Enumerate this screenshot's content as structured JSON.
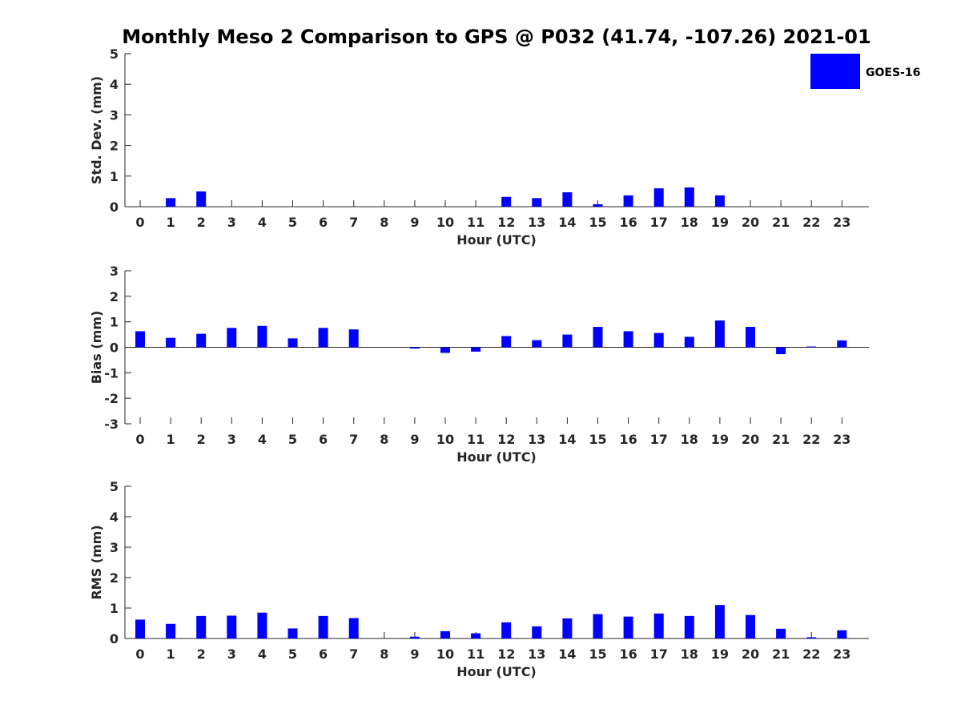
{
  "chart_data": {
    "type": "bar",
    "title": "Monthly Meso 2 Comparison to GPS @ P032 (41.74, -107.26) 2021-01",
    "legend": {
      "label": "GOES-16",
      "color": "#0000ff",
      "position": "top-right"
    },
    "bar_color": "#0000ff",
    "panels": [
      {
        "ylabel": "Std. Dev. (mm)",
        "xlabel": "Hour (UTC)",
        "ylim": [
          0,
          5
        ],
        "yticks": [
          0,
          1,
          2,
          3,
          4,
          5
        ],
        "x": [
          0,
          1,
          2,
          3,
          4,
          5,
          6,
          7,
          8,
          9,
          10,
          11,
          12,
          13,
          14,
          15,
          16,
          17,
          18,
          19,
          20,
          21,
          22,
          23
        ],
        "values": [
          null,
          0.28,
          0.5,
          null,
          null,
          null,
          null,
          null,
          null,
          null,
          null,
          null,
          0.32,
          0.28,
          0.47,
          0.08,
          0.37,
          0.6,
          0.63,
          0.37,
          null,
          null,
          null,
          null
        ]
      },
      {
        "ylabel": "Bias (mm)",
        "xlabel": "Hour (UTC)",
        "ylim": [
          -3,
          3
        ],
        "yticks": [
          -3,
          -2,
          -1,
          0,
          1,
          2,
          3
        ],
        "x": [
          0,
          1,
          2,
          3,
          4,
          5,
          6,
          7,
          8,
          9,
          10,
          11,
          12,
          13,
          14,
          15,
          16,
          17,
          18,
          19,
          20,
          21,
          22,
          23
        ],
        "values": [
          0.63,
          0.37,
          0.53,
          0.76,
          0.84,
          0.35,
          0.76,
          0.7,
          null,
          -0.05,
          -0.22,
          -0.17,
          0.44,
          0.28,
          0.5,
          0.8,
          0.63,
          0.56,
          0.41,
          1.05,
          0.8,
          -0.27,
          0.03,
          0.27
        ]
      },
      {
        "ylabel": "RMS (mm)",
        "xlabel": "Hour (UTC)",
        "ylim": [
          0,
          5
        ],
        "yticks": [
          0,
          1,
          2,
          3,
          4,
          5
        ],
        "x": [
          0,
          1,
          2,
          3,
          4,
          5,
          6,
          7,
          8,
          9,
          10,
          11,
          12,
          13,
          14,
          15,
          16,
          17,
          18,
          19,
          20,
          21,
          22,
          23
        ],
        "values": [
          0.62,
          0.48,
          0.74,
          0.75,
          0.85,
          0.33,
          0.74,
          0.67,
          null,
          0.06,
          0.24,
          0.17,
          0.53,
          0.4,
          0.66,
          0.8,
          0.72,
          0.82,
          0.74,
          1.1,
          0.77,
          0.32,
          0.04,
          0.27
        ]
      }
    ]
  }
}
